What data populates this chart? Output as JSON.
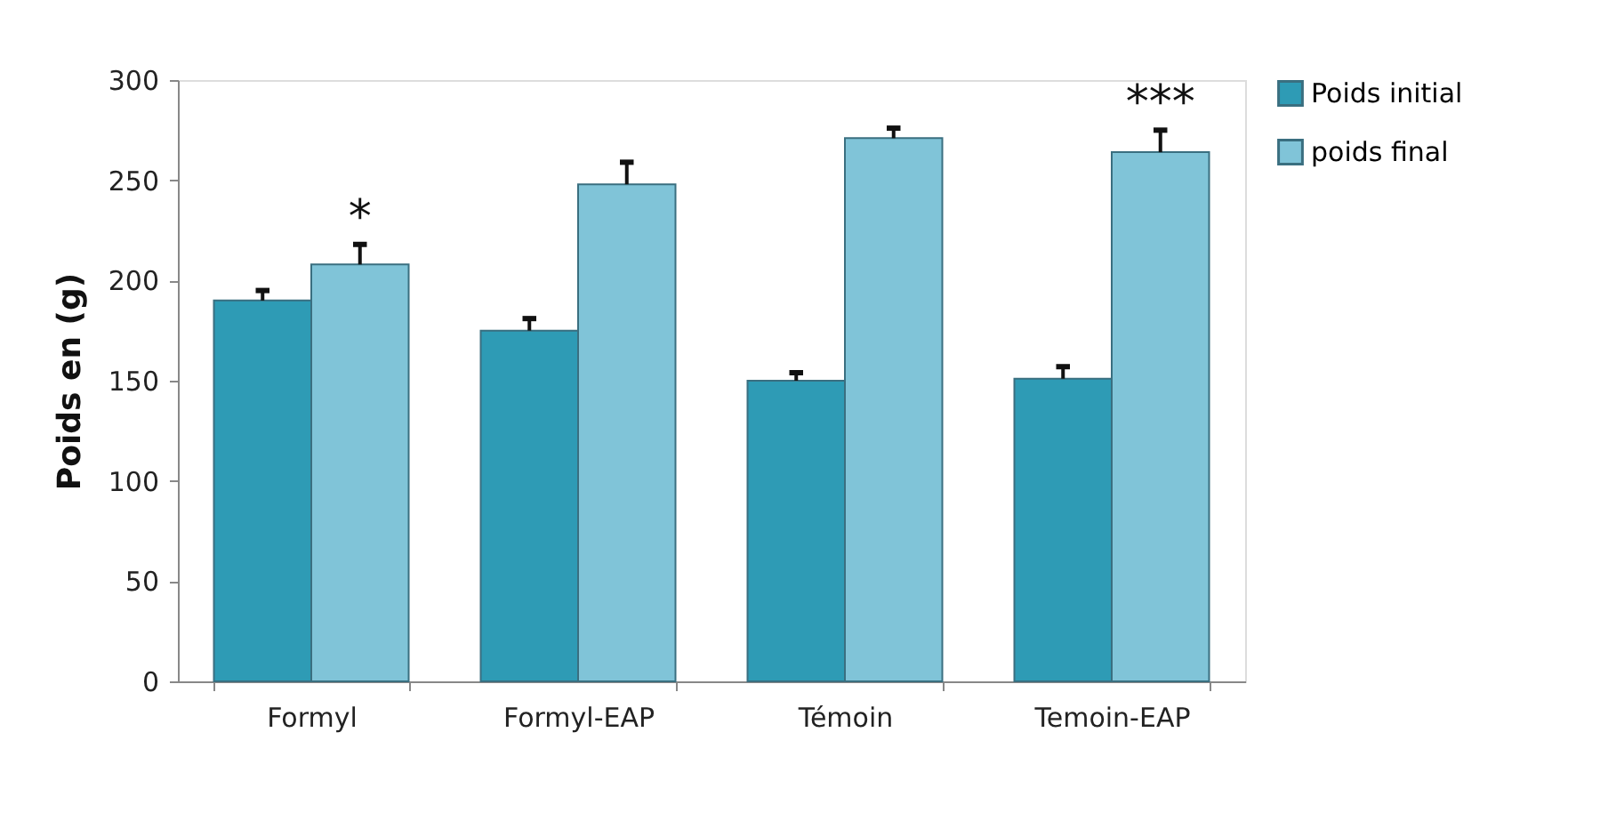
{
  "chart_data": {
    "type": "bar",
    "ylabel": "Poids en (g)",
    "categories": [
      "Formyl",
      "Formyl-EAP",
      "Témoin",
      "Temoin-EAP"
    ],
    "series": [
      {
        "name": "Poids initial",
        "color": "#2e9bb5",
        "values": [
          190,
          175,
          150,
          151
        ],
        "errors": [
          [
            190,
            195
          ],
          [
            175,
            181
          ],
          [
            150,
            154
          ],
          [
            151,
            157
          ]
        ]
      },
      {
        "name": "poids final",
        "color": "#80c4d8",
        "values": [
          208,
          248,
          271,
          264
        ],
        "errors": [
          [
            208,
            218
          ],
          [
            248,
            259
          ],
          [
            271,
            276
          ],
          [
            264,
            275
          ]
        ],
        "value_labels": [
          "*",
          null,
          null,
          "***"
        ]
      }
    ],
    "ylim": [
      0,
      300
    ],
    "yticks": [
      0,
      50,
      100,
      150,
      200,
      250,
      300
    ],
    "grid": false,
    "legend": "right"
  }
}
